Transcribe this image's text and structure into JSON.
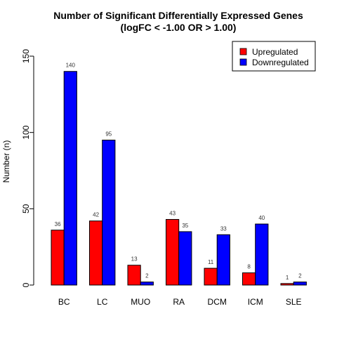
{
  "chart_data": {
    "type": "bar",
    "title": "Number of Significant Differentially Expressed Genes",
    "subtitle": "(logFC < -1.00 OR > 1.00)",
    "xlabel": "",
    "ylabel": "Number (n)",
    "ylim": [
      0,
      150
    ],
    "yticks": [
      0,
      50,
      100,
      150
    ],
    "categories": [
      "BC",
      "LC",
      "MUO",
      "RA",
      "DCM",
      "ICM",
      "SLE"
    ],
    "series": [
      {
        "name": "Upregulated",
        "color": "#ff0000",
        "values": [
          36,
          42,
          13,
          43,
          11,
          8,
          1
        ]
      },
      {
        "name": "Downregulated",
        "color": "#0000ff",
        "values": [
          140,
          95,
          2,
          35,
          33,
          40,
          2
        ]
      }
    ],
    "grid": false,
    "legend_position": "top-right"
  }
}
